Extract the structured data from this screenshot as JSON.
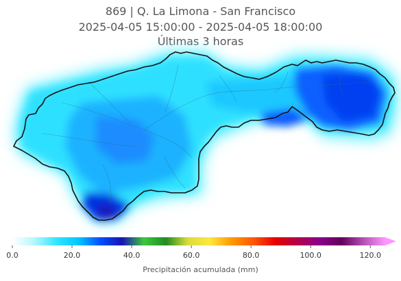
{
  "title": {
    "line1": "869 | Q. La Limona - San Francisco",
    "line2": "2025-04-05 15:00:00 - 2025-04-05 18:00:00",
    "line3": "Últimas 3 horas"
  },
  "colorbar": {
    "label": "Precipitación acumulada (mm)",
    "ticks": [
      "0.0",
      "20.0",
      "40.0",
      "60.0",
      "80.0",
      "100.0",
      "120.0"
    ],
    "range": [
      0,
      125
    ],
    "extend": "max",
    "colors": [
      "#ffffff",
      "#b3f7ff",
      "#33e5ff",
      "#00c8ff",
      "#0050ff",
      "#1a14b4",
      "#3cc83c",
      "#228b22",
      "#dcdc3c",
      "#ffe640",
      "#ff9900",
      "#ff5500",
      "#e60000",
      "#b4004b",
      "#8c008c",
      "#64005a",
      "#b450b4",
      "#ff96ff"
    ]
  },
  "map": {
    "basin_outline_color": "#111111",
    "rivers_color": "#2a6f8a"
  }
}
